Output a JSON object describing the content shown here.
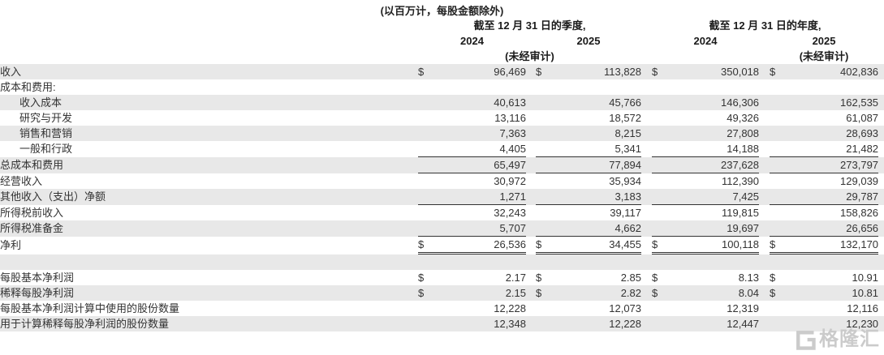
{
  "title": "(以百万计，每股金额除外)",
  "currency_symbol": "$",
  "header": {
    "quarter_period": "截至 12 月 31 日的季度,",
    "annual_period": "截至 12 月 31 日的年度,",
    "quarter_2024": "2024",
    "quarter_2025": "2025",
    "annual_2024": "2024",
    "annual_2025": "2025",
    "quarter_unaudited": "(未经审计)",
    "annual_unaudited": "(未经审计)"
  },
  "rows": [
    {
      "key": "revenue",
      "label": "收入",
      "indent": false,
      "dollar": true,
      "shaded": true,
      "underline": "none",
      "values": [
        "96,469",
        "113,828",
        "350,018",
        "402,836"
      ]
    },
    {
      "key": "costs-and-expenses-header",
      "label": "成本和费用:",
      "indent": false,
      "dollar": false,
      "shaded": false,
      "underline": "none",
      "values": [
        "",
        "",
        "",
        ""
      ]
    },
    {
      "key": "cost-of-revenue",
      "label": "收入成本",
      "indent": true,
      "dollar": false,
      "shaded": true,
      "underline": "none",
      "values": [
        "40,613",
        "45,766",
        "146,306",
        "162,535"
      ]
    },
    {
      "key": "research-and-development",
      "label": "研究与开发",
      "indent": true,
      "dollar": false,
      "shaded": false,
      "underline": "none",
      "values": [
        "13,116",
        "18,572",
        "49,326",
        "61,087"
      ]
    },
    {
      "key": "sales-and-marketing",
      "label": "销售和营销",
      "indent": true,
      "dollar": false,
      "shaded": true,
      "underline": "none",
      "values": [
        "7,363",
        "8,215",
        "27,808",
        "28,693"
      ]
    },
    {
      "key": "general-and-administrative",
      "label": "一般和行政",
      "indent": true,
      "dollar": false,
      "shaded": false,
      "underline": "single",
      "values": [
        "4,405",
        "5,341",
        "14,188",
        "21,482"
      ]
    },
    {
      "key": "total-costs-and-expenses",
      "label": "总成本和费用",
      "indent": false,
      "dollar": false,
      "shaded": true,
      "underline": "single",
      "values": [
        "65,497",
        "77,894",
        "237,628",
        "273,797"
      ]
    },
    {
      "key": "operating-income",
      "label": "经营收入",
      "indent": false,
      "dollar": false,
      "shaded": false,
      "underline": "none",
      "values": [
        "30,972",
        "35,934",
        "112,390",
        "129,039"
      ]
    },
    {
      "key": "other-income-expense-net",
      "label": "其他收入（支出）净额",
      "indent": false,
      "dollar": false,
      "shaded": true,
      "underline": "single",
      "values": [
        "1,271",
        "3,183",
        "7,425",
        "29,787"
      ]
    },
    {
      "key": "income-before-income-tax",
      "label": "所得税前收入",
      "indent": false,
      "dollar": false,
      "shaded": false,
      "underline": "none",
      "values": [
        "32,243",
        "39,117",
        "119,815",
        "158,826"
      ]
    },
    {
      "key": "income-tax-provision",
      "label": "所得税准备金",
      "indent": false,
      "dollar": false,
      "shaded": true,
      "underline": "single",
      "values": [
        "5,707",
        "4,662",
        "19,697",
        "26,656"
      ]
    },
    {
      "key": "net-income",
      "label": "净利",
      "indent": false,
      "dollar": true,
      "shaded": false,
      "underline": "double",
      "values": [
        "26,536",
        "34,455",
        "100,118",
        "132,170"
      ]
    },
    {
      "key": "spacer",
      "spacer": true,
      "shaded": true
    },
    {
      "key": "basic-eps",
      "label": "每股基本净利润",
      "indent": false,
      "dollar": true,
      "shaded": false,
      "underline": "none",
      "values": [
        "2.17",
        "2.85",
        "8.13",
        "10.91"
      ]
    },
    {
      "key": "diluted-eps",
      "label": "稀释每股净利润",
      "indent": false,
      "dollar": true,
      "shaded": true,
      "underline": "none",
      "values": [
        "2.15",
        "2.82",
        "8.04",
        "10.81"
      ]
    },
    {
      "key": "basic-share-count",
      "label": "每股基本净利润计算中使用的股份数量",
      "indent": false,
      "dollar": false,
      "shaded": false,
      "underline": "none",
      "values": [
        "12,228",
        "12,073",
        "12,319",
        "12,116"
      ]
    },
    {
      "key": "diluted-share-count",
      "label": "用于计算稀释每股净利润的股份数量",
      "indent": false,
      "dollar": false,
      "shaded": true,
      "underline": "none",
      "values": [
        "12,348",
        "12,228",
        "12,447",
        "12,230"
      ]
    }
  ],
  "colors": {
    "stripe": "#e8e8e8",
    "rule": "#333333",
    "text": "#333333",
    "header_text": "#1a1a1a",
    "watermark": "#c9c9c9"
  },
  "watermark": {
    "text": "格隆汇"
  }
}
